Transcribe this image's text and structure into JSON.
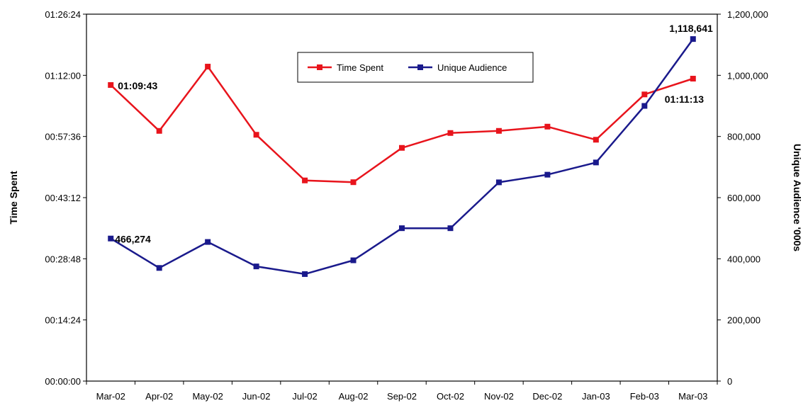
{
  "chart_data": {
    "type": "line",
    "categories": [
      "Mar-02",
      "Apr-02",
      "May-02",
      "Jun-02",
      "Jul-02",
      "Aug-02",
      "Sep-02",
      "Oct-02",
      "Nov-02",
      "Dec-02",
      "Jan-03",
      "Feb-03",
      "Mar-03"
    ],
    "y_left": {
      "label": "Time Spent",
      "ticks": [
        "00:00:00",
        "00:14:24",
        "00:28:48",
        "00:43:12",
        "00:57:36",
        "01:12:00",
        "01:26:24"
      ],
      "range_seconds": [
        0,
        5184
      ]
    },
    "y_right": {
      "label": "Unique Audience '000s",
      "ticks": [
        "0",
        "200,000",
        "400,000",
        "600,000",
        "800,000",
        "1,000,000",
        "1,200,000"
      ],
      "range": [
        0,
        1200000
      ]
    },
    "series": [
      {
        "name": "Time Spent",
        "axis": "left",
        "color": "#e8141c",
        "values_seconds": [
          4183,
          3535,
          4443,
          3480,
          2835,
          2810,
          3295,
          3505,
          3535,
          3595,
          3410,
          4050,
          4273
        ]
      },
      {
        "name": "Unique Audience",
        "axis": "right",
        "color": "#1a1a8c",
        "values": [
          466274,
          370000,
          455000,
          375000,
          350000,
          395000,
          500000,
          500000,
          650000,
          675000,
          715000,
          900000,
          1118641
        ]
      }
    ],
    "annotations": [
      {
        "text": "01:09:43",
        "series": 0,
        "index": 0
      },
      {
        "text": "01:11:13",
        "series": 0,
        "index": 12
      },
      {
        "text": "466,274",
        "series": 1,
        "index": 0
      },
      {
        "text": "1,118,641",
        "series": 1,
        "index": 12
      }
    ],
    "legend": {
      "position": "top-center",
      "entries": [
        "Time Spent",
        "Unique Audience"
      ]
    },
    "grid": false
  }
}
